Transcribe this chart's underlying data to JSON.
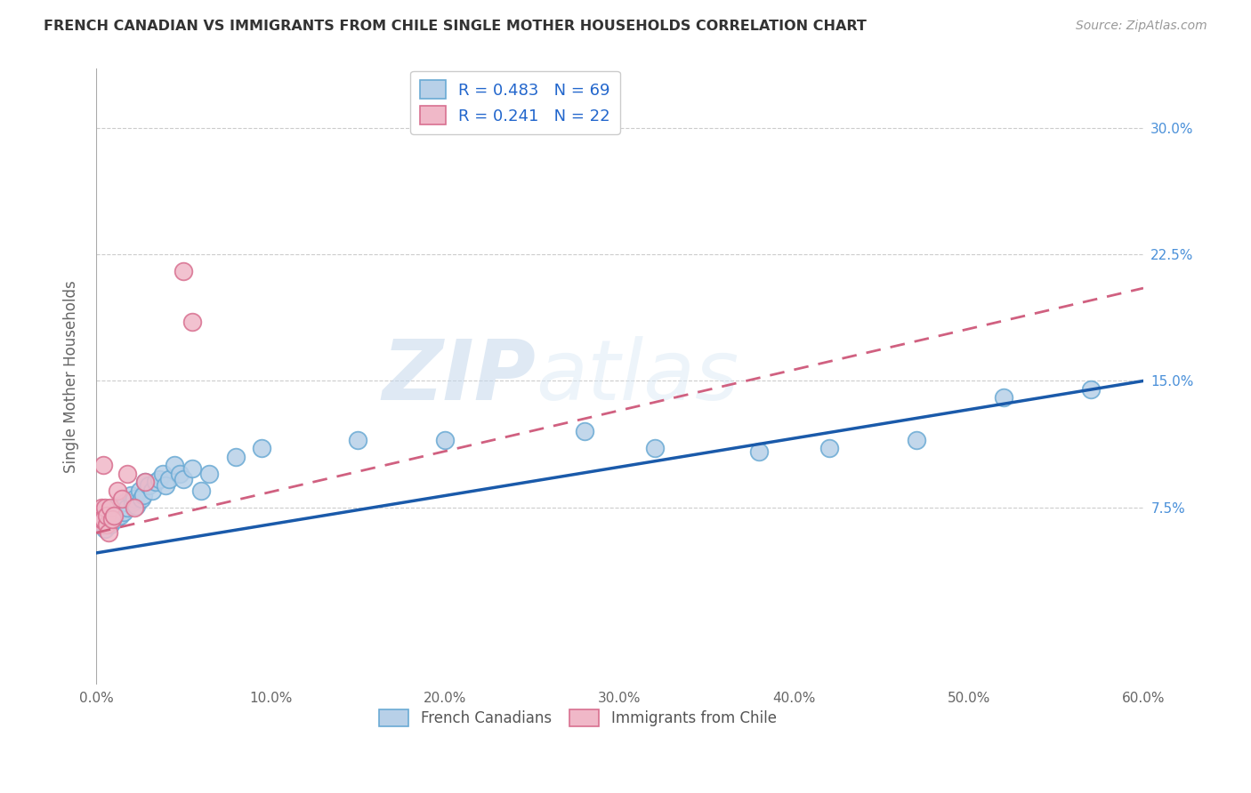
{
  "title": "FRENCH CANADIAN VS IMMIGRANTS FROM CHILE SINGLE MOTHER HOUSEHOLDS CORRELATION CHART",
  "source": "Source: ZipAtlas.com",
  "ylabel": "Single Mother Households",
  "xlim": [
    0.0,
    0.6
  ],
  "ylim": [
    -0.03,
    0.335
  ],
  "xtick_labels": [
    "0.0%",
    "10.0%",
    "20.0%",
    "30.0%",
    "40.0%",
    "50.0%",
    "60.0%"
  ],
  "xtick_vals": [
    0.0,
    0.1,
    0.2,
    0.3,
    0.4,
    0.5,
    0.6
  ],
  "ytick_vals": [
    0.075,
    0.15,
    0.225,
    0.3
  ],
  "ytick_right_labels": [
    "7.5%",
    "15.0%",
    "22.5%",
    "30.0%"
  ],
  "legend_r1": "R = 0.483",
  "legend_n1": "N = 69",
  "legend_r2": "R = 0.241",
  "legend_n2": "N = 22",
  "blue_color": "#b8d0e8",
  "blue_edge_color": "#6aaad4",
  "pink_color": "#f0b8c8",
  "pink_edge_color": "#d87090",
  "blue_line_color": "#1a5aaa",
  "pink_line_color": "#d06080",
  "watermark_zip": "ZIP",
  "watermark_atlas": "atlas",
  "french_canadian_x": [
    0.001,
    0.001,
    0.002,
    0.002,
    0.002,
    0.003,
    0.003,
    0.003,
    0.003,
    0.004,
    0.004,
    0.004,
    0.004,
    0.005,
    0.005,
    0.005,
    0.005,
    0.005,
    0.006,
    0.006,
    0.006,
    0.007,
    0.007,
    0.008,
    0.008,
    0.009,
    0.009,
    0.01,
    0.01,
    0.011,
    0.012,
    0.013,
    0.014,
    0.015,
    0.016,
    0.017,
    0.018,
    0.02,
    0.021,
    0.022,
    0.023,
    0.025,
    0.026,
    0.027,
    0.028,
    0.03,
    0.032,
    0.034,
    0.036,
    0.038,
    0.04,
    0.042,
    0.045,
    0.048,
    0.05,
    0.055,
    0.06,
    0.065,
    0.08,
    0.095,
    0.15,
    0.2,
    0.28,
    0.32,
    0.38,
    0.42,
    0.47,
    0.52,
    0.57
  ],
  "french_canadian_y": [
    0.068,
    0.072,
    0.065,
    0.07,
    0.073,
    0.065,
    0.068,
    0.07,
    0.072,
    0.065,
    0.068,
    0.07,
    0.073,
    0.062,
    0.065,
    0.067,
    0.07,
    0.072,
    0.065,
    0.068,
    0.07,
    0.068,
    0.072,
    0.065,
    0.07,
    0.068,
    0.072,
    0.07,
    0.074,
    0.068,
    0.072,
    0.076,
    0.07,
    0.075,
    0.072,
    0.078,
    0.075,
    0.082,
    0.078,
    0.08,
    0.076,
    0.085,
    0.08,
    0.082,
    0.09,
    0.088,
    0.085,
    0.09,
    0.092,
    0.095,
    0.088,
    0.092,
    0.1,
    0.095,
    0.092,
    0.098,
    0.085,
    0.095,
    0.105,
    0.11,
    0.115,
    0.115,
    0.12,
    0.11,
    0.108,
    0.11,
    0.115,
    0.14,
    0.145
  ],
  "immigrants_chile_x": [
    0.001,
    0.001,
    0.002,
    0.002,
    0.003,
    0.003,
    0.004,
    0.004,
    0.005,
    0.006,
    0.006,
    0.007,
    0.008,
    0.009,
    0.01,
    0.012,
    0.015,
    0.018,
    0.022,
    0.028,
    0.05,
    0.055
  ],
  "immigrants_chile_y": [
    0.068,
    0.072,
    0.065,
    0.07,
    0.075,
    0.068,
    0.1,
    0.068,
    0.075,
    0.065,
    0.07,
    0.06,
    0.075,
    0.068,
    0.07,
    0.085,
    0.08,
    0.095,
    0.075,
    0.09,
    0.215,
    0.185
  ],
  "fc_line_x": [
    0.0,
    0.6
  ],
  "fc_line_y": [
    0.048,
    0.15
  ],
  "ic_line_x": [
    0.0,
    0.6
  ],
  "ic_line_y": [
    0.06,
    0.205
  ]
}
